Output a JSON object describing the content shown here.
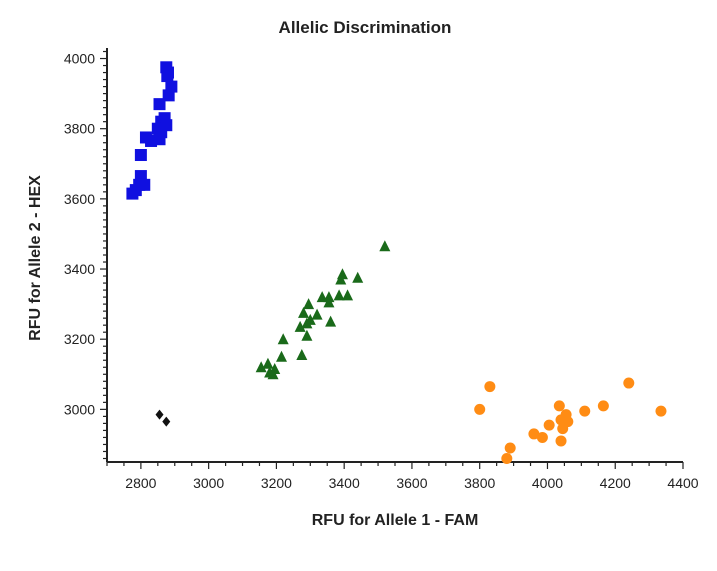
{
  "chart_data": {
    "type": "scatter",
    "title": "Allelic Discrimination",
    "xlabel": "RFU for Allele 1 - FAM",
    "ylabel": "RFU for Allele 2 - HEX",
    "xlim": [
      2700,
      4400
    ],
    "ylim": [
      2850,
      4030
    ],
    "xticks": [
      2800,
      3000,
      3200,
      3400,
      3600,
      3800,
      4000,
      4200,
      4400
    ],
    "yticks": [
      3000,
      3200,
      3400,
      3600,
      3800,
      4000
    ],
    "grid": false,
    "series": [
      {
        "marker": "square",
        "color": "#1010e0",
        "points": [
          [
            2875,
            3975
          ],
          [
            2880,
            3960
          ],
          [
            2878,
            3950
          ],
          [
            2890,
            3920
          ],
          [
            2882,
            3895
          ],
          [
            2855,
            3870
          ],
          [
            2870,
            3830
          ],
          [
            2860,
            3820
          ],
          [
            2875,
            3810
          ],
          [
            2850,
            3800
          ],
          [
            2860,
            3790
          ],
          [
            2815,
            3775
          ],
          [
            2830,
            3765
          ],
          [
            2855,
            3770
          ],
          [
            2800,
            3725
          ],
          [
            2800,
            3665
          ],
          [
            2810,
            3640
          ],
          [
            2795,
            3640
          ],
          [
            2785,
            3625
          ],
          [
            2775,
            3615
          ]
        ]
      },
      {
        "marker": "triangle",
        "color": "#1a6a1a",
        "points": [
          [
            3520,
            3465
          ],
          [
            3440,
            3375
          ],
          [
            3395,
            3385
          ],
          [
            3390,
            3370
          ],
          [
            3410,
            3325
          ],
          [
            3385,
            3325
          ],
          [
            3355,
            3320
          ],
          [
            3335,
            3320
          ],
          [
            3355,
            3305
          ],
          [
            3295,
            3300
          ],
          [
            3280,
            3275
          ],
          [
            3320,
            3270
          ],
          [
            3300,
            3255
          ],
          [
            3290,
            3245
          ],
          [
            3360,
            3250
          ],
          [
            3270,
            3235
          ],
          [
            3290,
            3210
          ],
          [
            3220,
            3200
          ],
          [
            3275,
            3155
          ],
          [
            3215,
            3150
          ],
          [
            3175,
            3130
          ],
          [
            3155,
            3120
          ],
          [
            3195,
            3115
          ],
          [
            3180,
            3105
          ],
          [
            3190,
            3100
          ]
        ]
      },
      {
        "marker": "circle",
        "color": "#ff8c14",
        "points": [
          [
            4240,
            3075
          ],
          [
            3830,
            3065
          ],
          [
            4165,
            3010
          ],
          [
            4035,
            3010
          ],
          [
            3800,
            3000
          ],
          [
            4335,
            2995
          ],
          [
            4110,
            2995
          ],
          [
            4055,
            2985
          ],
          [
            4040,
            2970
          ],
          [
            4060,
            2965
          ],
          [
            4005,
            2955
          ],
          [
            4045,
            2945
          ],
          [
            3960,
            2930
          ],
          [
            3985,
            2920
          ],
          [
            4040,
            2910
          ],
          [
            3890,
            2890
          ],
          [
            3880,
            2860
          ]
        ]
      },
      {
        "marker": "diamond",
        "color": "#111111",
        "points": [
          [
            2855,
            2985
          ],
          [
            2875,
            2965
          ]
        ]
      }
    ]
  }
}
